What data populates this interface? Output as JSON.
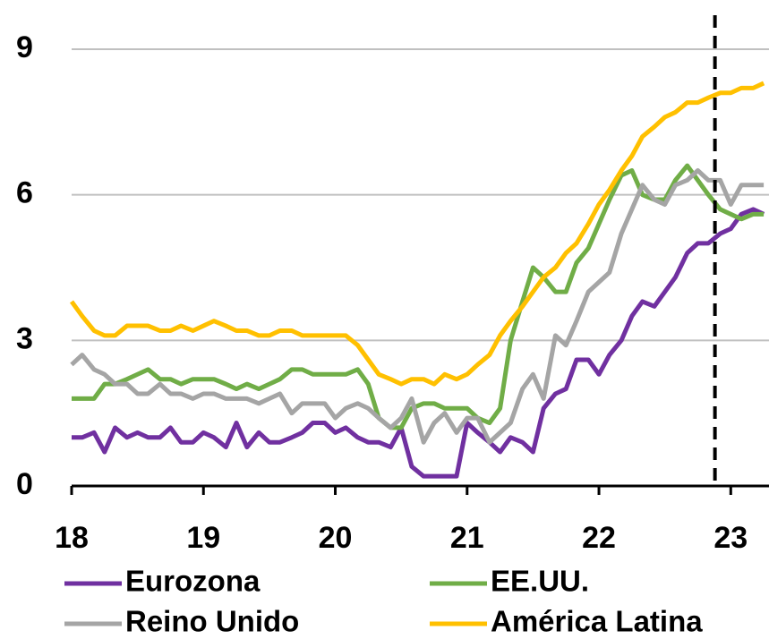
{
  "chart_data": {
    "type": "line",
    "x": [
      18,
      18.08,
      18.17,
      18.25,
      18.33,
      18.42,
      18.5,
      18.58,
      18.67,
      18.75,
      18.83,
      18.92,
      19,
      19.08,
      19.17,
      19.25,
      19.33,
      19.42,
      19.5,
      19.58,
      19.67,
      19.75,
      19.83,
      19.92,
      20,
      20.08,
      20.17,
      20.25,
      20.33,
      20.42,
      20.5,
      20.58,
      20.67,
      20.75,
      20.83,
      20.92,
      21,
      21.08,
      21.17,
      21.25,
      21.33,
      21.42,
      21.5,
      21.58,
      21.67,
      21.75,
      21.83,
      21.92,
      22,
      22.08,
      22.17,
      22.25,
      22.33,
      22.42,
      22.5,
      22.58,
      22.67,
      22.75,
      22.83,
      22.92,
      23,
      23.08,
      23.17,
      23.25
    ],
    "series": [
      {
        "name": "Eurozona",
        "color": "#7030a0",
        "values": [
          1.0,
          1.0,
          1.1,
          0.7,
          1.2,
          1.0,
          1.1,
          1.0,
          1.0,
          1.2,
          0.9,
          0.9,
          1.1,
          1.0,
          0.8,
          1.3,
          0.8,
          1.1,
          0.9,
          0.9,
          1.0,
          1.1,
          1.3,
          1.3,
          1.1,
          1.2,
          1.0,
          0.9,
          0.9,
          0.8,
          1.2,
          0.4,
          0.2,
          0.2,
          0.2,
          0.2,
          1.3,
          1.1,
          0.9,
          0.7,
          1.0,
          0.9,
          0.7,
          1.6,
          1.9,
          2.0,
          2.6,
          2.6,
          2.3,
          2.7,
          3.0,
          3.5,
          3.8,
          3.7,
          4.0,
          4.3,
          4.8,
          5.0,
          5.0,
          5.2,
          5.3,
          5.6,
          5.7,
          5.6
        ]
      },
      {
        "name": "EE.UU.",
        "color": "#70ad47",
        "values": [
          1.8,
          1.8,
          1.8,
          2.1,
          2.1,
          2.2,
          2.3,
          2.4,
          2.2,
          2.2,
          2.1,
          2.2,
          2.2,
          2.2,
          2.1,
          2.0,
          2.1,
          2.0,
          2.1,
          2.2,
          2.4,
          2.4,
          2.3,
          2.3,
          2.3,
          2.3,
          2.4,
          2.1,
          1.4,
          1.2,
          1.2,
          1.6,
          1.7,
          1.7,
          1.6,
          1.6,
          1.6,
          1.4,
          1.3,
          1.6,
          3.0,
          3.8,
          4.5,
          4.3,
          4.0,
          4.0,
          4.6,
          4.9,
          5.4,
          5.9,
          6.4,
          6.5,
          6.0,
          5.9,
          5.9,
          6.3,
          6.6,
          6.3,
          6.0,
          5.7,
          5.6,
          5.5,
          5.6,
          5.6
        ]
      },
      {
        "name": "Reino Unido",
        "color": "#a5a5a5",
        "values": [
          2.5,
          2.7,
          2.4,
          2.3,
          2.1,
          2.1,
          1.9,
          1.9,
          2.1,
          1.9,
          1.9,
          1.8,
          1.9,
          1.9,
          1.8,
          1.8,
          1.8,
          1.7,
          1.8,
          1.9,
          1.5,
          1.7,
          1.7,
          1.7,
          1.4,
          1.6,
          1.7,
          1.6,
          1.4,
          1.2,
          1.4,
          1.8,
          0.9,
          1.3,
          1.5,
          1.1,
          1.4,
          1.4,
          0.9,
          1.1,
          1.3,
          2.0,
          2.3,
          1.8,
          3.1,
          2.9,
          3.4,
          4.0,
          4.2,
          4.4,
          5.2,
          5.7,
          6.2,
          5.9,
          5.8,
          6.2,
          6.3,
          6.5,
          6.3,
          6.3,
          5.8,
          6.2,
          6.2,
          6.2
        ]
      },
      {
        "name": "América Latina",
        "color": "#ffc000",
        "values": [
          3.8,
          3.5,
          3.2,
          3.1,
          3.1,
          3.3,
          3.3,
          3.3,
          3.2,
          3.2,
          3.3,
          3.2,
          3.3,
          3.4,
          3.3,
          3.2,
          3.2,
          3.1,
          3.1,
          3.2,
          3.2,
          3.1,
          3.1,
          3.1,
          3.1,
          3.1,
          2.9,
          2.6,
          2.3,
          2.2,
          2.1,
          2.2,
          2.2,
          2.1,
          2.3,
          2.2,
          2.3,
          2.5,
          2.7,
          3.1,
          3.4,
          3.7,
          4.0,
          4.3,
          4.5,
          4.8,
          5.0,
          5.4,
          5.8,
          6.1,
          6.5,
          6.8,
          7.2,
          7.4,
          7.6,
          7.7,
          7.9,
          7.9,
          8.0,
          8.1,
          8.1,
          8.2,
          8.2,
          8.3
        ]
      }
    ],
    "xlim": [
      18,
      23.29
    ],
    "xticks": [
      18,
      19,
      20,
      21,
      22,
      23
    ],
    "ylim": [
      0,
      9.7
    ],
    "yticks": [
      0,
      3,
      6,
      9
    ],
    "grid": true,
    "vline": 22.88
  }
}
